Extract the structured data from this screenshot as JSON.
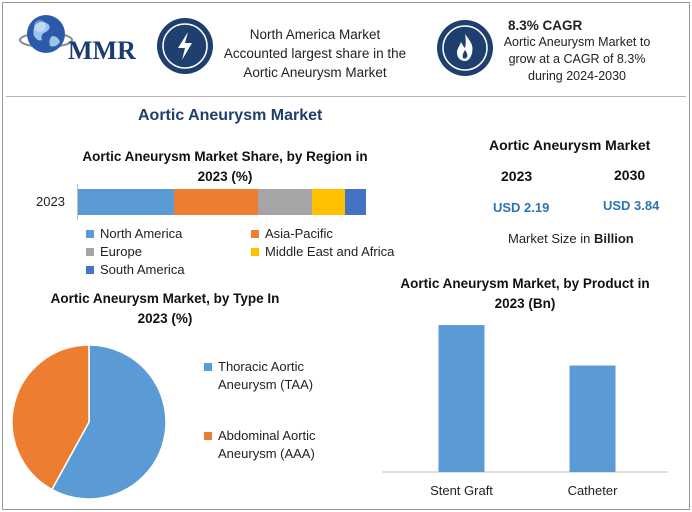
{
  "logo": {
    "text": "MMR"
  },
  "header": {
    "left_box": {
      "line1": "North America Market",
      "line2": "Accounted largest share in the",
      "line3": "Aortic Aneurysm Market"
    },
    "right_box": {
      "title": "8.3% CAGR",
      "line1": "Aortic Aneurysm Market to",
      "line2": "grow at a CAGR of 8.3%",
      "line3": "during 2024-2030"
    }
  },
  "main_title": "Aortic Aneurysm Market",
  "market_size": {
    "title": "Aortic Aneurysm Market",
    "year_a": "2023",
    "year_b": "2030",
    "value_a": "USD 2.19",
    "value_b": "USD 3.84",
    "caption_prefix": "Market Size in",
    "caption_unit": "Billion"
  },
  "colors": {
    "blue": "#5b9bd5",
    "orange": "#ed7d31",
    "gray": "#a5a5a5",
    "yellow": "#ffc000",
    "dark_blue": "#4472c4",
    "navy": "#1f3f6e"
  },
  "icons": {
    "left": "lightning-icon",
    "right": "flame-icon"
  },
  "chart_data": [
    {
      "type": "bar",
      "orientation": "horizontal-stacked",
      "title_line1": "Aortic Aneurysm Market Share, by Region in",
      "title_line2": "2023 (%)",
      "categories": [
        "2023"
      ],
      "series": [
        {
          "name": "North America",
          "values": [
            32
          ],
          "color": "#5b9bd5"
        },
        {
          "name": "Asia-Pacific",
          "values": [
            28
          ],
          "color": "#ed7d31"
        },
        {
          "name": "Europe",
          "values": [
            18
          ],
          "color": "#a5a5a5"
        },
        {
          "name": "Middle East and Africa",
          "values": [
            11
          ],
          "color": "#ffc000"
        },
        {
          "name": "South America",
          "values": [
            7
          ],
          "color": "#4472c4"
        }
      ],
      "xlim": [
        0,
        100
      ]
    },
    {
      "type": "pie",
      "title_line1": "Aortic Aneurysm Market, by Type In",
      "title_line2": "2023 (%)",
      "series": [
        {
          "name": "Thoracic Aortic Aneurysm (TAA)",
          "label_line1": "Thoracic Aortic",
          "label_line2": "Aneurysm (TAA)",
          "value": 58,
          "color": "#5b9bd5"
        },
        {
          "name": "Abdominal Aortic Aneurysm (AAA)",
          "label_line1": "Abdominal Aortic",
          "label_line2": "Aneurysm (AAA)",
          "value": 42,
          "color": "#ed7d31"
        }
      ]
    },
    {
      "type": "bar",
      "title_line1": "Aortic Aneurysm Market, by Product in",
      "title_line2": "2023 (Bn)",
      "categories": [
        "Stent Graft",
        "Catheter"
      ],
      "values": [
        1.27,
        0.92
      ],
      "ylim": [
        0,
        1.4
      ],
      "color": "#5b9bd5"
    }
  ]
}
